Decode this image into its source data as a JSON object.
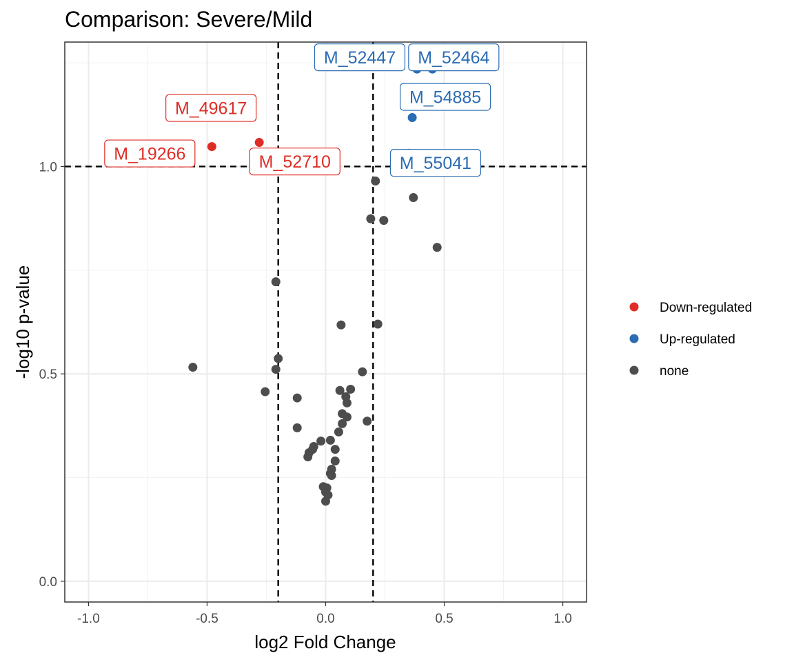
{
  "chart_data": {
    "type": "scatter",
    "title": "Comparison: Severe/Mild",
    "xlabel": "log2 Fold Change",
    "ylabel": "-log10 p-value",
    "xlim": [
      -1.1,
      1.1
    ],
    "ylim": [
      -0.05,
      1.3
    ],
    "x_ticks": [
      -1.0,
      -0.5,
      0.0,
      0.5,
      1.0
    ],
    "x_tick_labels": [
      "-1.0",
      "-0.5",
      "0.0",
      "0.5",
      "1.0"
    ],
    "y_ticks": [
      0.0,
      0.5,
      1.0
    ],
    "y_tick_labels": [
      "0.0",
      "0.5",
      "1.0"
    ],
    "grid": true,
    "fc_thresholds": [
      -0.2,
      0.2
    ],
    "p_threshold": 1.0,
    "legend_position": "right",
    "colors": {
      "Down-regulated": "#de2d26",
      "Up-regulated": "#2b6db3",
      "none": "#4d4d4d"
    },
    "series": [
      {
        "name": "Down-regulated",
        "points": [
          {
            "x": -0.48,
            "y": 1.048,
            "label": "M_19266"
          },
          {
            "x": -0.28,
            "y": 1.058,
            "label": "M_49617"
          },
          {
            "x": -0.22,
            "y": 1.032,
            "label": "M_52710"
          }
        ]
      },
      {
        "name": "Up-regulated",
        "points": [
          {
            "x": 0.385,
            "y": 1.235,
            "label": "M_52447"
          },
          {
            "x": 0.45,
            "y": 1.235,
            "label": "M_52464"
          },
          {
            "x": 0.365,
            "y": 1.118,
            "label": "M_54885"
          },
          {
            "x": 0.35,
            "y": 1.032,
            "label": "M_55041"
          }
        ]
      },
      {
        "name": "none",
        "points": [
          {
            "x": 0.21,
            "y": 0.965
          },
          {
            "x": 0.37,
            "y": 0.925
          },
          {
            "x": 0.19,
            "y": 0.874
          },
          {
            "x": 0.245,
            "y": 0.87
          },
          {
            "x": 0.47,
            "y": 0.805
          },
          {
            "x": -0.21,
            "y": 0.722
          },
          {
            "x": 0.065,
            "y": 0.618
          },
          {
            "x": 0.22,
            "y": 0.62
          },
          {
            "x": -0.2,
            "y": 0.537
          },
          {
            "x": -0.56,
            "y": 0.516
          },
          {
            "x": -0.21,
            "y": 0.511
          },
          {
            "x": 0.155,
            "y": 0.505
          },
          {
            "x": 0.105,
            "y": 0.463
          },
          {
            "x": 0.06,
            "y": 0.46
          },
          {
            "x": -0.255,
            "y": 0.457
          },
          {
            "x": 0.085,
            "y": 0.445
          },
          {
            "x": -0.12,
            "y": 0.442
          },
          {
            "x": 0.09,
            "y": 0.43
          },
          {
            "x": 0.07,
            "y": 0.404
          },
          {
            "x": 0.09,
            "y": 0.396
          },
          {
            "x": 0.175,
            "y": 0.386
          },
          {
            "x": 0.07,
            "y": 0.38
          },
          {
            "x": -0.12,
            "y": 0.37
          },
          {
            "x": 0.055,
            "y": 0.36
          },
          {
            "x": -0.02,
            "y": 0.338
          },
          {
            "x": 0.02,
            "y": 0.34
          },
          {
            "x": -0.05,
            "y": 0.325
          },
          {
            "x": -0.055,
            "y": 0.318
          },
          {
            "x": 0.04,
            "y": 0.318
          },
          {
            "x": -0.07,
            "y": 0.31
          },
          {
            "x": -0.075,
            "y": 0.3
          },
          {
            "x": 0.04,
            "y": 0.29
          },
          {
            "x": 0.025,
            "y": 0.27
          },
          {
            "x": 0.02,
            "y": 0.26
          },
          {
            "x": 0.025,
            "y": 0.255
          },
          {
            "x": -0.01,
            "y": 0.228
          },
          {
            "x": 0.005,
            "y": 0.225
          },
          {
            "x": 0.0,
            "y": 0.215
          },
          {
            "x": 0.01,
            "y": 0.208
          },
          {
            "x": 0.0,
            "y": 0.193
          }
        ]
      }
    ]
  }
}
